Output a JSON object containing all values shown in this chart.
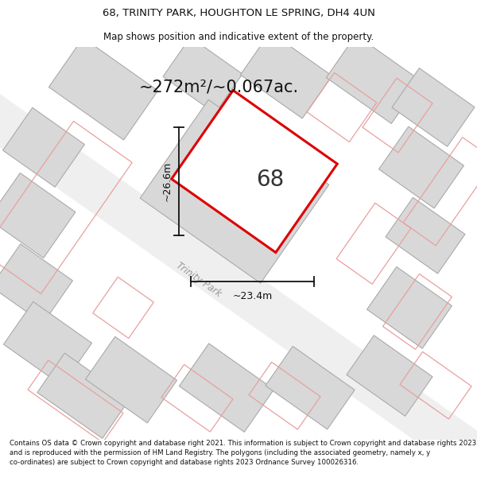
{
  "title_line1": "68, TRINITY PARK, HOUGHTON LE SPRING, DH4 4UN",
  "title_line2": "Map shows position and indicative extent of the property.",
  "area_text": "~272m²/~0.067ac.",
  "property_number": "68",
  "dim_vertical": "~26.6m",
  "dim_horizontal": "~23.4m",
  "street_label": "Trinity Park",
  "footer_text": "Contains OS data © Crown copyright and database right 2021. This information is subject to Crown copyright and database rights 2023 and is reproduced with the permission of HM Land Registry. The polygons (including the associated geometry, namely x, y co-ordinates) are subject to Crown copyright and database rights 2023 Ordnance Survey 100026316.",
  "bg_color": "#f7f7f7",
  "plot_fill": "#d8d8d8",
  "plot_outline_gray": "#aaaaaa",
  "highlight_color": "#e8000000",
  "dim_line_color": "#111111",
  "pink_outline": "#e8a0a0",
  "road_color": "#f0f0f0",
  "white": "#ffffff"
}
